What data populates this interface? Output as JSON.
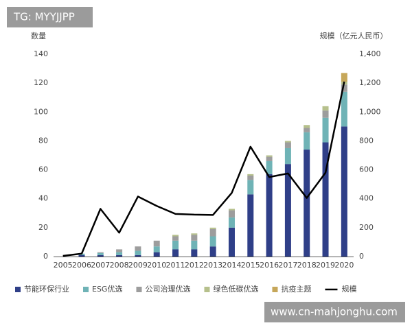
{
  "chart_data": {
    "type": "bar",
    "stacked": true,
    "grid": false,
    "ylabel": "数量",
    "y2label": "规模（亿元人民币）",
    "categories": [
      "2005",
      "2006",
      "2007",
      "2008",
      "2009",
      "2010",
      "2011",
      "2012",
      "2013",
      "2014",
      "2015",
      "2016",
      "2017",
      "2018",
      "2019",
      "2020"
    ],
    "ylim": [
      0,
      140
    ],
    "yticks": [
      0,
      20,
      40,
      60,
      80,
      100,
      120,
      140
    ],
    "y2lim": [
      0,
      1400
    ],
    "y2ticks": [
      0,
      200,
      400,
      600,
      800,
      {
        "value": 1000,
        "label": "1,000"
      },
      {
        "value": 1200,
        "label": "1,200"
      },
      {
        "value": 1400,
        "label": "1,400"
      }
    ],
    "legend": "bottom",
    "series": [
      {
        "name": "节能环保行业",
        "color": "#2f3f88",
        "values": [
          0,
          1,
          1,
          1,
          1,
          3,
          5,
          5,
          7,
          20,
          43,
          57,
          64,
          74,
          79,
          90
        ]
      },
      {
        "name": "ESG优选",
        "color": "#6fb3b6",
        "values": [
          0,
          1,
          1.5,
          2,
          3,
          4,
          6,
          6,
          7,
          7,
          10,
          9,
          11,
          12,
          17,
          24
        ]
      },
      {
        "name": "公司治理优选",
        "color": "#9d9d9d",
        "values": [
          0,
          0,
          0.5,
          2,
          3,
          4,
          3,
          4,
          5,
          5,
          3,
          3,
          4,
          3,
          5,
          5
        ]
      },
      {
        "name": "绿色低碳优选",
        "color": "#b6c08c",
        "values": [
          0,
          0,
          0,
          0,
          0,
          0,
          1,
          1,
          1,
          1,
          1,
          1,
          1,
          2,
          3,
          2
        ]
      },
      {
        "name": "抗疫主题",
        "color": "#c6a75a",
        "values": [
          0,
          0,
          0,
          0,
          0,
          0,
          0,
          0,
          0,
          0,
          0,
          0,
          0,
          0,
          0,
          6
        ]
      },
      {
        "name": "规模",
        "color": "#000000",
        "type": "line",
        "axis": "y2",
        "values": [
          5,
          20,
          330,
          165,
          415,
          350,
          295,
          290,
          288,
          440,
          760,
          550,
          575,
          405,
          580,
          1210
        ]
      }
    ]
  },
  "overlay": {
    "top_left": "TG: MYYJJPP",
    "bottom_right": "www.cn-mahjonghu.com"
  }
}
